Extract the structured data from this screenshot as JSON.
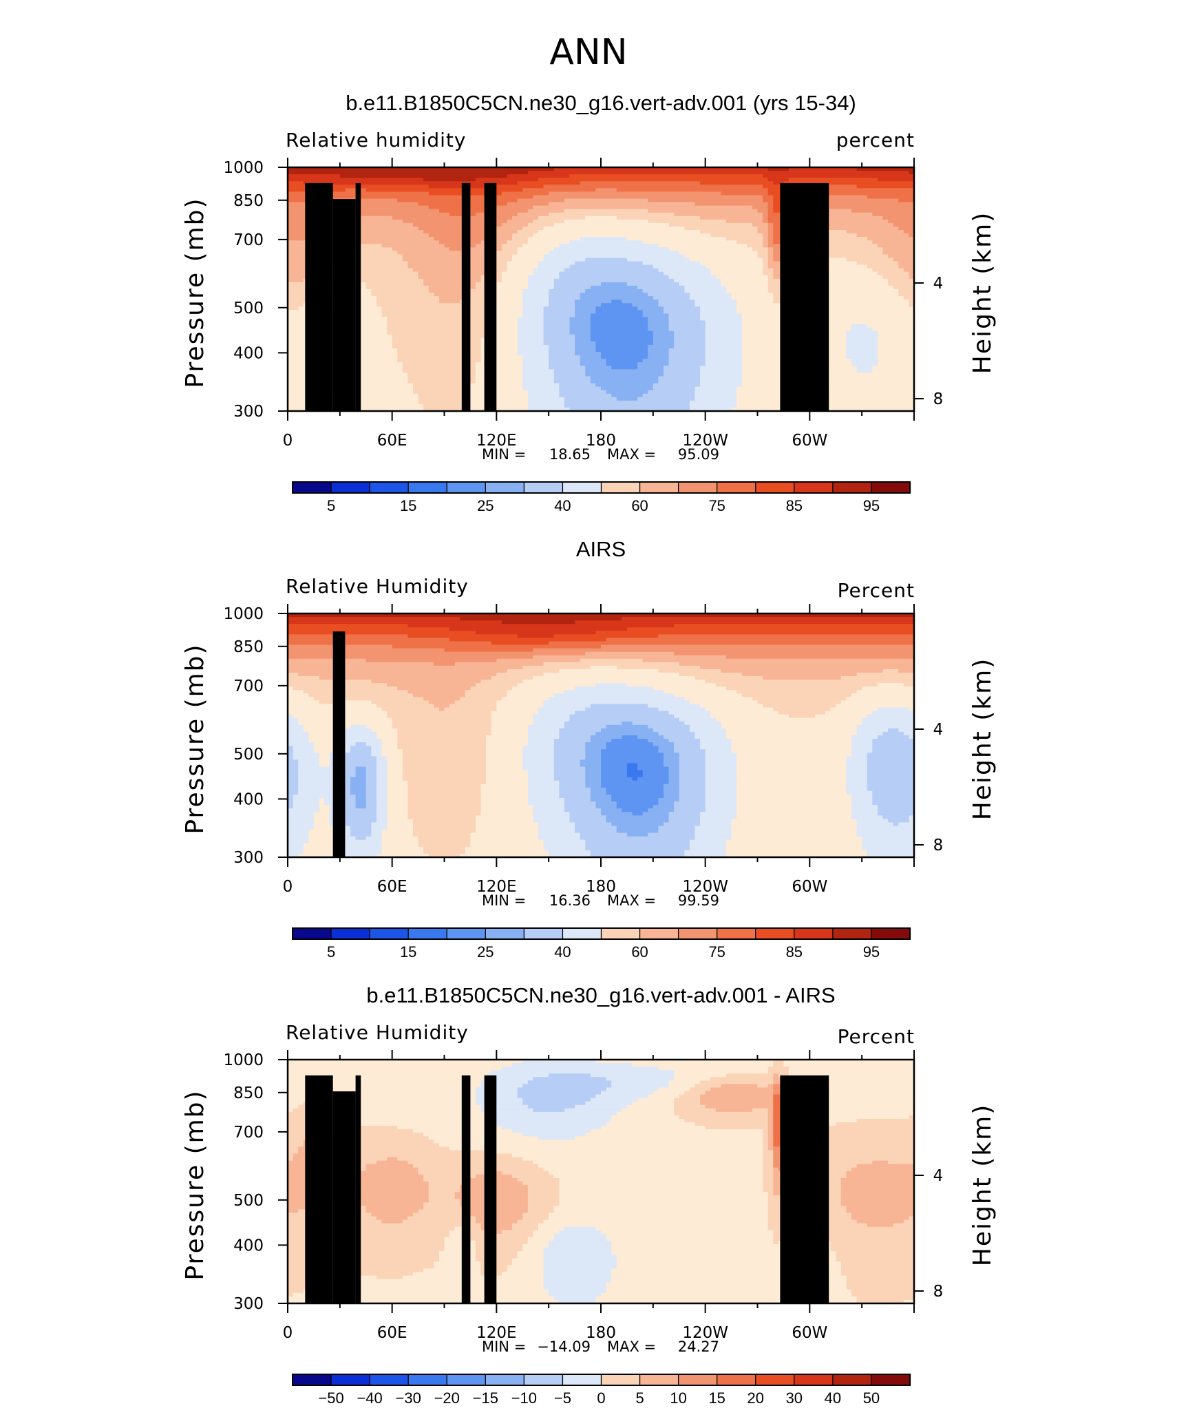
{
  "main_title": "ANN",
  "colors": {
    "relhum_scale": [
      "#08088c",
      "#0b2fd6",
      "#1d55e8",
      "#3a78f0",
      "#5e95f2",
      "#88b1f3",
      "#b6cdf6",
      "#dce7f8",
      "#fdebd6",
      "#fbd4b8",
      "#f7b596",
      "#f39471",
      "#ef7148",
      "#e94e23",
      "#d7361a",
      "#b02410",
      "#850a0a"
    ],
    "relhum_diff_scale": [
      "#08088c",
      "#0b2fd6",
      "#1d55e8",
      "#3a78f0",
      "#5e95f2",
      "#88b1f3",
      "#b6cdf6",
      "#dce7f8",
      "#fdebd6",
      "#fbd4b8",
      "#f7b596",
      "#f39471",
      "#ef7148",
      "#e94e23",
      "#d7361a",
      "#b02410",
      "#850a0a"
    ],
    "topography": "#000000"
  },
  "chart_data": [
    {
      "type": "heatmap",
      "title": "b.e11.B1850C5CN.ne30_g16.vert-adv.001 (yrs 15-34)",
      "left_label": "Relative humidity",
      "right_label": "percent",
      "ylabel": "Pressure (mb)",
      "y2label": "Height (km)",
      "x_ticks": [
        "0",
        "60E",
        "120E",
        "180",
        "120W",
        "60W"
      ],
      "x_tick_lon": [
        0,
        60,
        120,
        180,
        240,
        300
      ],
      "xlim_lon": [
        0,
        360
      ],
      "y_ticks": [
        "300",
        "400",
        "500",
        "700",
        "850",
        "1000"
      ],
      "y_tick_values": [
        300,
        400,
        500,
        700,
        850,
        1000
      ],
      "ylim_mb": [
        1000,
        300
      ],
      "y2_ticks": [
        "8",
        "4"
      ],
      "y2_tick_values": [
        8,
        4
      ],
      "stats": {
        "min_label": "MIN =",
        "min": "18.65",
        "max_label": "MAX =",
        "max": "95.09"
      },
      "colorbar_labels": [
        "5",
        "15",
        "25",
        "40",
        "60",
        "75",
        "85",
        "95"
      ],
      "legend_position": "bottom",
      "field_kind": "model"
    },
    {
      "type": "heatmap",
      "title": "AIRS",
      "left_label": "Relative Humidity",
      "right_label": "Percent",
      "ylabel": "Pressure (mb)",
      "y2label": "Height (km)",
      "x_ticks": [
        "0",
        "60E",
        "120E",
        "180",
        "120W",
        "60W"
      ],
      "x_tick_lon": [
        0,
        60,
        120,
        180,
        240,
        300
      ],
      "xlim_lon": [
        0,
        360
      ],
      "y_ticks": [
        "300",
        "400",
        "500",
        "700",
        "850",
        "1000"
      ],
      "y_tick_values": [
        300,
        400,
        500,
        700,
        850,
        1000
      ],
      "ylim_mb": [
        1000,
        300
      ],
      "y2_ticks": [
        "8",
        "4"
      ],
      "y2_tick_values": [
        8,
        4
      ],
      "stats": {
        "min_label": "MIN =",
        "min": "16.36",
        "max_label": "MAX =",
        "max": "99.59"
      },
      "colorbar_labels": [
        "5",
        "15",
        "25",
        "40",
        "60",
        "75",
        "85",
        "95"
      ],
      "legend_position": "bottom",
      "field_kind": "obs"
    },
    {
      "type": "heatmap",
      "title": "b.e11.B1850C5CN.ne30_g16.vert-adv.001 - AIRS",
      "left_label": "Relative Humidity",
      "right_label": "Percent",
      "ylabel": "Pressure (mb)",
      "y2label": "Height (km)",
      "x_ticks": [
        "0",
        "60E",
        "120E",
        "180",
        "120W",
        "60W"
      ],
      "x_tick_lon": [
        0,
        60,
        120,
        180,
        240,
        300
      ],
      "xlim_lon": [
        0,
        360
      ],
      "y_ticks": [
        "300",
        "400",
        "500",
        "700",
        "850",
        "1000"
      ],
      "y_tick_values": [
        300,
        400,
        500,
        700,
        850,
        1000
      ],
      "ylim_mb": [
        1000,
        300
      ],
      "y2_ticks": [
        "8",
        "4"
      ],
      "y2_tick_values": [
        8,
        4
      ],
      "stats": {
        "min_label": "MIN =",
        "min": "−14.09",
        "max_label": "MAX =",
        "max": "24.27"
      },
      "colorbar_labels": [
        "−50",
        "−40",
        "−30",
        "−20",
        "−15",
        "−10",
        "−5",
        "0",
        "5",
        "10",
        "15",
        "20",
        "30",
        "40",
        "50"
      ],
      "legend_position": "bottom",
      "field_kind": "diff"
    }
  ]
}
